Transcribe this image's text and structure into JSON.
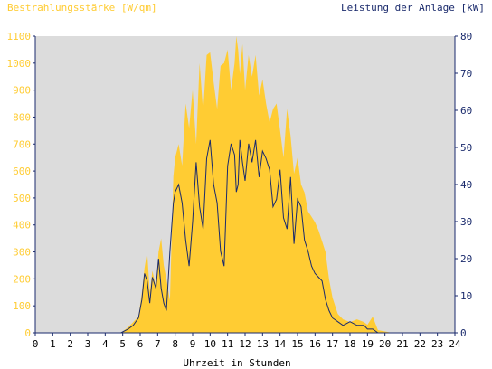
{
  "chart_data": {
    "type": "area",
    "title_left": "Bestrahlungsstärke [W/qm]",
    "title_right": "Leistung der Anlage [kW]",
    "xlabel": "Uhrzeit in Stunden",
    "x_ticks": [
      "0",
      "1",
      "2",
      "3",
      "4",
      "5",
      "6",
      "7",
      "8",
      "9",
      "10",
      "11",
      "12",
      "13",
      "14",
      "15",
      "16",
      "17",
      "18",
      "19",
      "20",
      "21",
      "22",
      "23",
      "24"
    ],
    "xlim": [
      0,
      24
    ],
    "y_left": {
      "ticks": [
        "0",
        "100",
        "200",
        "300",
        "400",
        "500",
        "600",
        "700",
        "800",
        "900",
        "1000",
        "1100"
      ],
      "ylim": [
        0,
        1100
      ]
    },
    "y_right": {
      "ticks": [
        "0",
        "10",
        "20",
        "30",
        "40",
        "50",
        "60",
        "70",
        "80"
      ],
      "ylim": [
        0,
        80
      ]
    },
    "grid": false,
    "colors": {
      "irradiance": "#ffcc33",
      "power": "#1a2a6c",
      "plot_bg": "#dcdcdc",
      "axis": "#1a2a6c"
    },
    "series": [
      {
        "name": "Bestrahlungsstärke",
        "axis": "left",
        "x": [
          0,
          4.9,
          5.3,
          5.6,
          5.9,
          6.1,
          6.25,
          6.4,
          6.55,
          6.7,
          6.9,
          7.05,
          7.2,
          7.35,
          7.5,
          7.7,
          7.9,
          8.0,
          8.2,
          8.4,
          8.6,
          8.8,
          9.0,
          9.2,
          9.4,
          9.6,
          9.8,
          10.0,
          10.2,
          10.4,
          10.6,
          10.8,
          11.0,
          11.2,
          11.4,
          11.5,
          11.6,
          11.7,
          11.85,
          12.0,
          12.2,
          12.4,
          12.6,
          12.8,
          13.0,
          13.2,
          13.4,
          13.6,
          13.8,
          14.0,
          14.2,
          14.4,
          14.6,
          14.8,
          15.0,
          15.2,
          15.4,
          15.6,
          15.8,
          16.0,
          16.2,
          16.4,
          16.6,
          16.8,
          17.0,
          17.3,
          17.6,
          18.0,
          18.4,
          18.8,
          19.0,
          19.3,
          19.6,
          20.0,
          20.4,
          24
        ],
        "values": [
          0,
          0,
          20,
          40,
          60,
          150,
          240,
          300,
          150,
          230,
          170,
          300,
          350,
          250,
          200,
          120,
          580,
          650,
          700,
          620,
          850,
          760,
          900,
          700,
          1000,
          820,
          1030,
          1040,
          930,
          830,
          990,
          1000,
          1050,
          900,
          1000,
          1100,
          1050,
          960,
          1070,
          900,
          1030,
          950,
          1030,
          880,
          940,
          850,
          780,
          830,
          850,
          750,
          650,
          830,
          730,
          590,
          650,
          550,
          520,
          450,
          430,
          410,
          380,
          340,
          300,
          200,
          130,
          70,
          50,
          40,
          50,
          40,
          30,
          60,
          10,
          5,
          0,
          0
        ]
      },
      {
        "name": "Leistung der Anlage",
        "axis": "right",
        "x": [
          0,
          4.9,
          5.3,
          5.6,
          5.9,
          6.1,
          6.25,
          6.4,
          6.55,
          6.7,
          6.9,
          7.05,
          7.2,
          7.35,
          7.5,
          7.7,
          7.9,
          8.0,
          8.2,
          8.4,
          8.6,
          8.8,
          9.0,
          9.2,
          9.4,
          9.6,
          9.8,
          10.0,
          10.2,
          10.4,
          10.6,
          10.8,
          11.0,
          11.2,
          11.4,
          11.5,
          11.6,
          11.7,
          11.85,
          12.0,
          12.2,
          12.4,
          12.6,
          12.8,
          13.0,
          13.2,
          13.4,
          13.6,
          13.8,
          14.0,
          14.2,
          14.4,
          14.6,
          14.8,
          15.0,
          15.2,
          15.4,
          15.6,
          15.8,
          16.0,
          16.2,
          16.4,
          16.6,
          16.8,
          17.0,
          17.3,
          17.6,
          18.0,
          18.4,
          18.8,
          19.0,
          19.3,
          19.6,
          20.0,
          20.4,
          24
        ],
        "values": [
          0,
          0,
          1,
          2,
          4,
          9,
          16,
          14,
          8,
          15,
          12,
          20,
          12,
          8,
          6,
          22,
          35,
          38,
          40,
          35,
          25,
          18,
          30,
          46,
          34,
          28,
          47,
          52,
          40,
          35,
          22,
          18,
          45,
          51,
          48,
          38,
          40,
          52,
          46,
          41,
          51,
          46,
          52,
          42,
          49,
          47,
          44,
          34,
          36,
          44,
          31,
          28,
          42,
          24,
          36,
          34,
          25,
          22,
          18,
          16,
          15,
          14,
          9,
          6,
          4,
          3,
          2,
          3,
          2,
          2,
          1,
          1,
          0,
          0,
          0,
          0
        ]
      }
    ]
  }
}
